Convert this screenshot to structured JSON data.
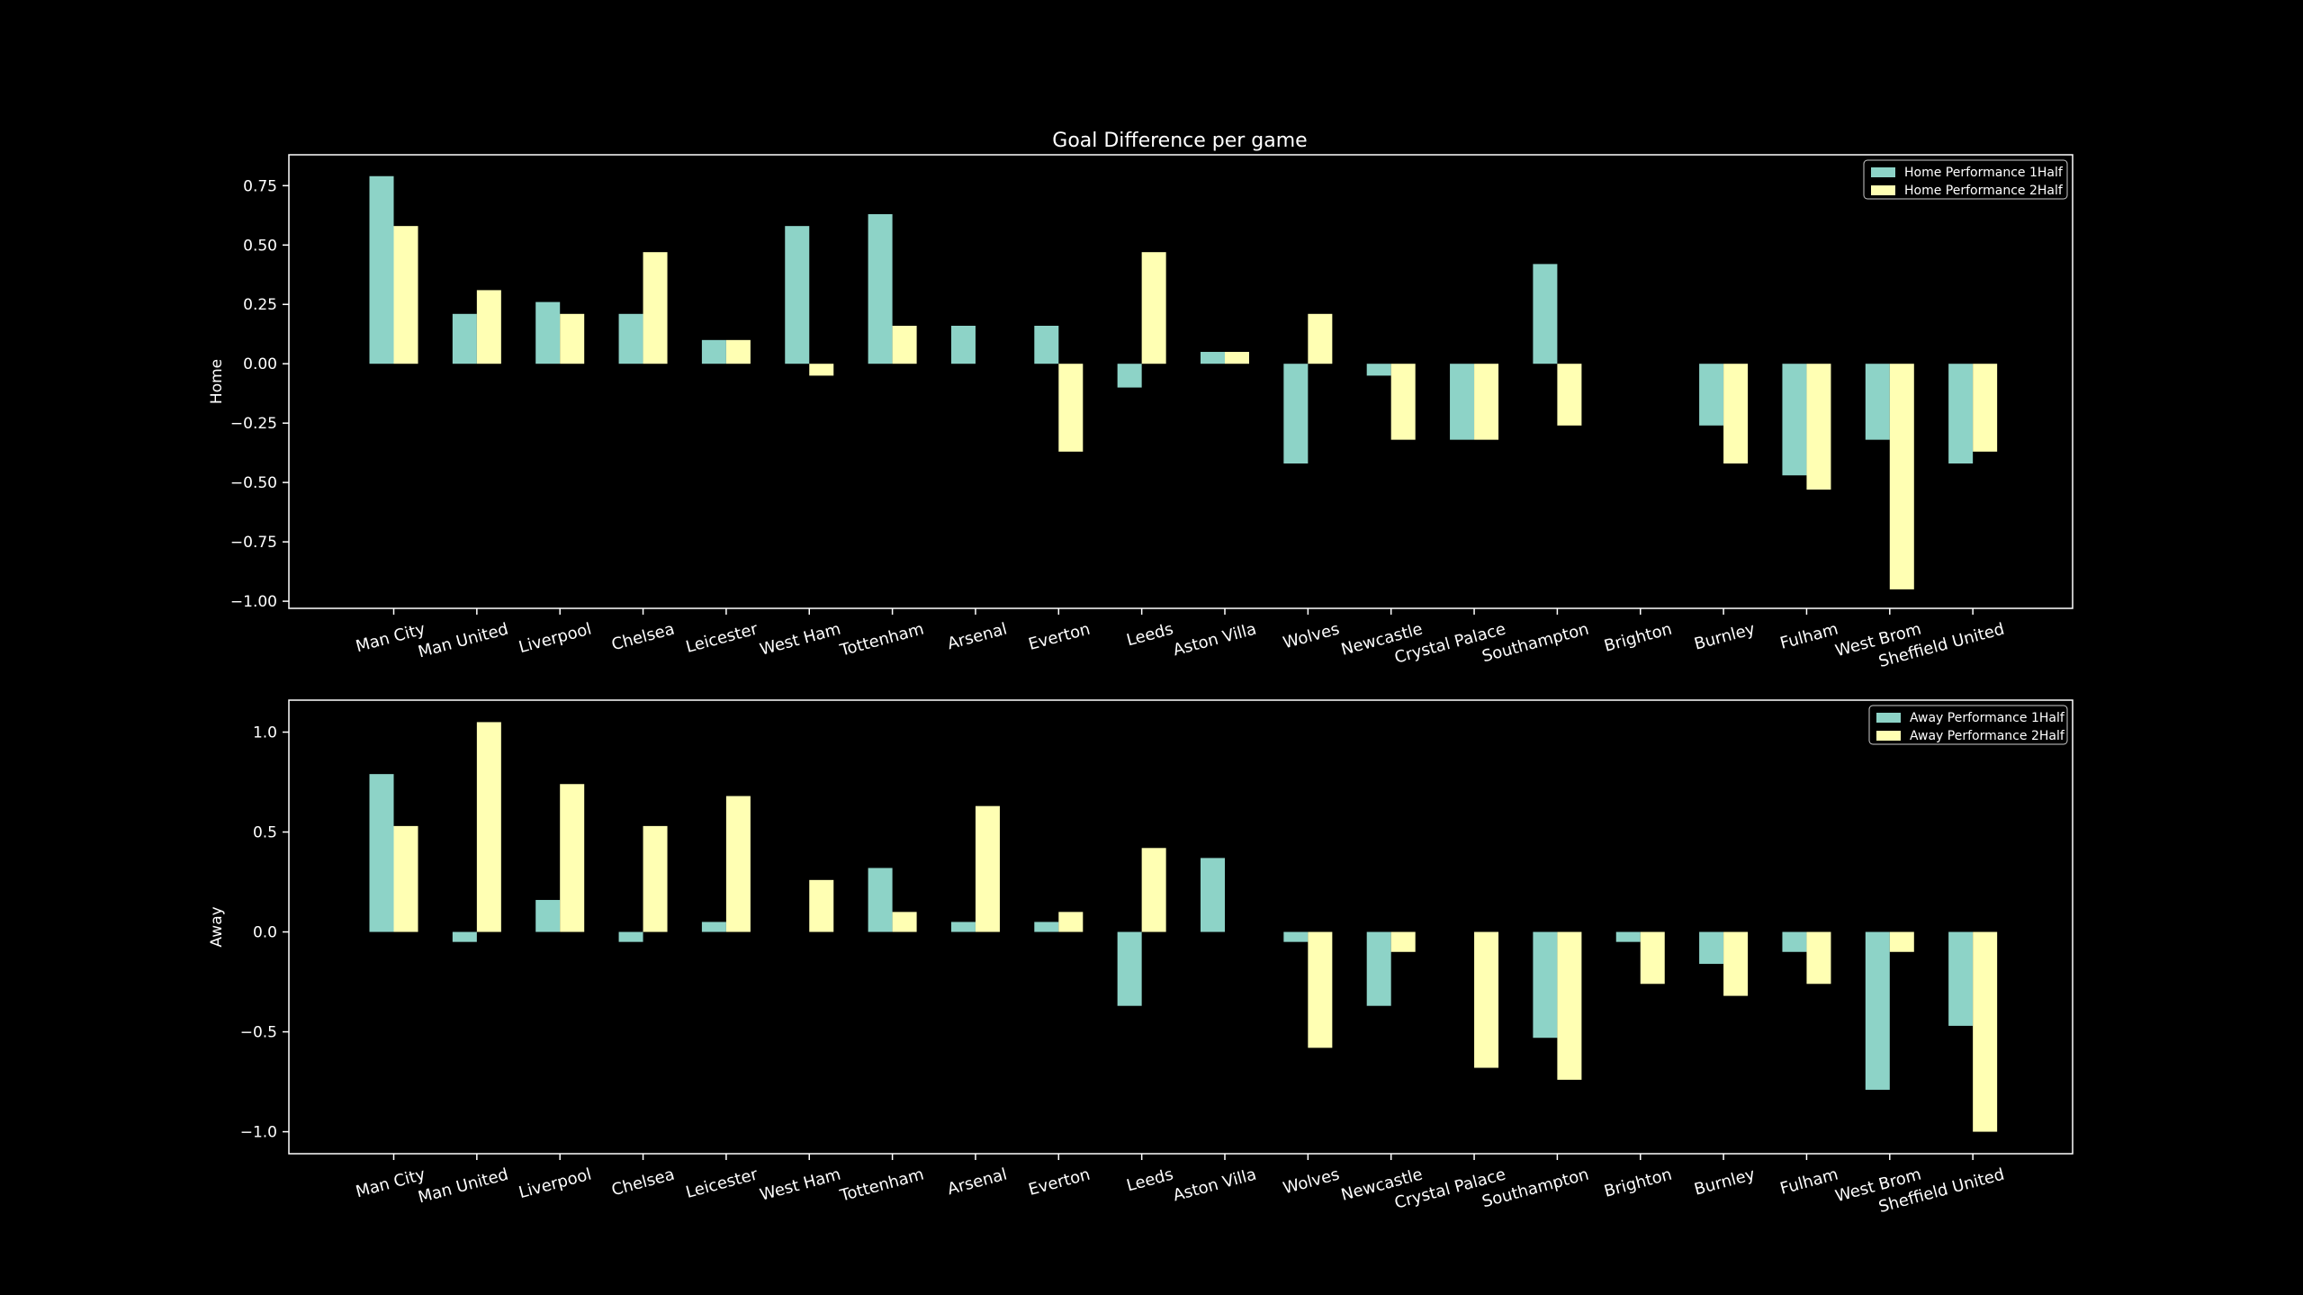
{
  "title": "Goal Difference per game",
  "colors": {
    "background": "#000000",
    "foreground": "#ffffff",
    "series1": "#8dd3c7",
    "series2": "#ffffb3"
  },
  "chart_data": [
    {
      "type": "bar",
      "title": "Goal Difference per game",
      "ylabel": "Home",
      "xlabel": "",
      "ylim": [
        -1.03,
        0.88
      ],
      "yticks": [
        0.75,
        0.5,
        0.25,
        0.0,
        -0.25,
        -0.5,
        -0.75,
        -1.0
      ],
      "ytick_labels": [
        "0.75",
        "0.50",
        "0.25",
        "0.00",
        "−0.25",
        "−0.50",
        "−0.75",
        "−1.00"
      ],
      "legend": "top-right",
      "grid": false,
      "categories": [
        "Man City",
        "Man United",
        "Liverpool",
        "Chelsea",
        "Leicester",
        "West Ham",
        "Tottenham",
        "Arsenal",
        "Everton",
        "Leeds",
        "Aston Villa",
        "Wolves",
        "Newcastle",
        "Crystal Palace",
        "Southampton",
        "Brighton",
        "Burnley",
        "Fulham",
        "West Brom",
        "Sheffield United"
      ],
      "series": [
        {
          "name": "Home Performance 1Half",
          "values": [
            0.79,
            0.21,
            0.26,
            0.21,
            0.1,
            0.58,
            0.63,
            0.16,
            0.16,
            -0.1,
            0.05,
            -0.42,
            -0.05,
            -0.32,
            0.42,
            0.0,
            -0.26,
            -0.47,
            -0.32,
            -0.42
          ]
        },
        {
          "name": "Home Performance 2Half",
          "values": [
            0.58,
            0.31,
            0.21,
            0.47,
            0.1,
            -0.05,
            0.16,
            0.0,
            -0.37,
            0.47,
            0.05,
            0.21,
            -0.32,
            -0.32,
            -0.26,
            0.0,
            -0.42,
            -0.53,
            -0.95,
            -0.37
          ]
        }
      ]
    },
    {
      "type": "bar",
      "title": "",
      "ylabel": "Away",
      "xlabel": "",
      "ylim": [
        -1.11,
        1.16
      ],
      "yticks": [
        1.0,
        0.5,
        0.0,
        -0.5,
        -1.0
      ],
      "ytick_labels": [
        "1.0",
        "0.5",
        "0.0",
        "−0.5",
        "−1.0"
      ],
      "legend": "top-right",
      "grid": false,
      "categories": [
        "Man City",
        "Man United",
        "Liverpool",
        "Chelsea",
        "Leicester",
        "West Ham",
        "Tottenham",
        "Arsenal",
        "Everton",
        "Leeds",
        "Aston Villa",
        "Wolves",
        "Newcastle",
        "Crystal Palace",
        "Southampton",
        "Brighton",
        "Burnley",
        "Fulham",
        "West Brom",
        "Sheffield United"
      ],
      "series": [
        {
          "name": "Away Performance 1Half",
          "values": [
            0.79,
            -0.05,
            0.16,
            -0.05,
            0.05,
            0.0,
            0.32,
            0.05,
            0.05,
            -0.37,
            0.37,
            -0.05,
            -0.37,
            0.0,
            -0.53,
            -0.05,
            -0.16,
            -0.1,
            -0.79,
            -0.47
          ]
        },
        {
          "name": "Away Performance 2Half",
          "values": [
            0.53,
            1.05,
            0.74,
            0.53,
            0.68,
            0.26,
            0.1,
            0.63,
            0.1,
            0.42,
            0.0,
            -0.58,
            -0.1,
            -0.68,
            -0.74,
            -0.26,
            -0.32,
            -0.26,
            -0.1,
            -1.0
          ]
        }
      ]
    }
  ]
}
